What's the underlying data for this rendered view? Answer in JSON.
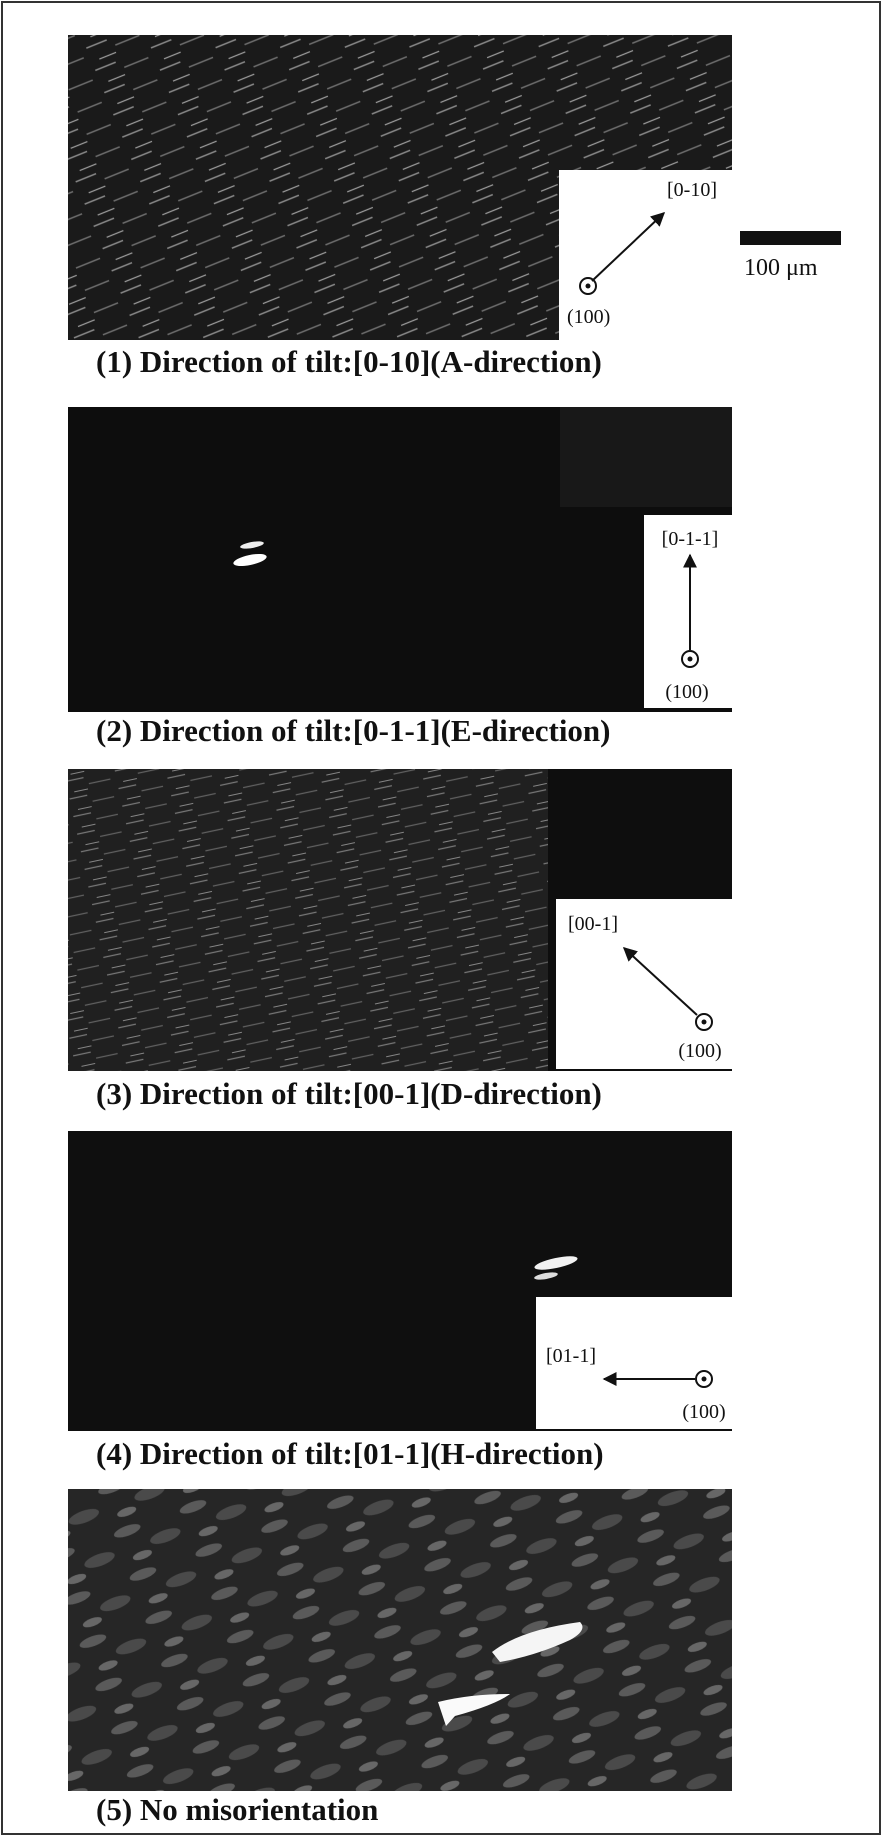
{
  "scale_bar": {
    "label": "100 μm"
  },
  "panels": [
    {
      "caption": "(1) Direction of tilt:[0-10](A-direction)",
      "direction": "[0-10]",
      "normal": "(100)"
    },
    {
      "caption": "(2) Direction of tilt:[0-1-1](E-direction)",
      "direction": "[0-1-1]",
      "normal": "(100)"
    },
    {
      "caption": "(3) Direction of tilt:[00-1](D-direction)",
      "direction": "[00-1]",
      "normal": "(100)"
    },
    {
      "caption": "(4) Direction of tilt:[01-1](H-direction)",
      "direction": "[01-1]",
      "normal": "(100)"
    },
    {
      "caption": "(5) No misorientation"
    }
  ]
}
